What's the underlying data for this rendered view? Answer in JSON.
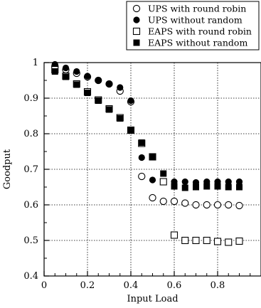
{
  "chart_data": {
    "type": "scatter",
    "xlabel": "Input Load",
    "ylabel": "Goodput",
    "xlim": [
      0,
      1
    ],
    "ylim": [
      0.4,
      1.0
    ],
    "xticks": [
      0,
      0.2,
      0.4,
      0.6,
      0.8
    ],
    "yticks": [
      0.4,
      0.5,
      0.6,
      0.7,
      0.8,
      0.9,
      1
    ],
    "xtick_labels": [
      "0",
      "0.2",
      "0.4",
      "0.6",
      "0.8"
    ],
    "ytick_labels": [
      "0.4",
      "0.5",
      "0.6",
      "0.7",
      "0.8",
      "0.9",
      "1"
    ],
    "grid": true,
    "legend_position": "top-right",
    "series": [
      {
        "name": "UPS with round robin",
        "marker": "circle-open",
        "x": [
          0.05,
          0.1,
          0.15,
          0.2,
          0.25,
          0.3,
          0.35,
          0.4,
          0.45,
          0.5,
          0.55,
          0.6,
          0.65,
          0.7,
          0.75,
          0.8,
          0.85,
          0.9
        ],
        "y": [
          0.99,
          0.98,
          0.97,
          0.96,
          0.95,
          0.94,
          0.92,
          0.89,
          0.68,
          0.62,
          0.61,
          0.61,
          0.605,
          0.6,
          0.6,
          0.6,
          0.6,
          0.598
        ]
      },
      {
        "name": "UPS without random",
        "marker": "circle-filled",
        "x": [
          0.05,
          0.1,
          0.15,
          0.2,
          0.25,
          0.3,
          0.35,
          0.4,
          0.45,
          0.5,
          0.55,
          0.6,
          0.65,
          0.7,
          0.75,
          0.8,
          0.85,
          0.9
        ],
        "y": [
          0.995,
          0.985,
          0.975,
          0.962,
          0.95,
          0.94,
          0.93,
          0.893,
          0.733,
          0.67,
          0.665,
          0.665,
          0.665,
          0.663,
          0.665,
          0.665,
          0.665,
          0.665
        ]
      },
      {
        "name": "EAPS with round robin",
        "marker": "square-open",
        "x": [
          0.05,
          0.1,
          0.15,
          0.2,
          0.25,
          0.3,
          0.35,
          0.4,
          0.45,
          0.5,
          0.55,
          0.6,
          0.65,
          0.7,
          0.75,
          0.8,
          0.85,
          0.9
        ],
        "y": [
          0.98,
          0.962,
          0.94,
          0.918,
          0.895,
          0.87,
          0.845,
          0.81,
          0.773,
          0.735,
          0.665,
          0.515,
          0.5,
          0.5,
          0.5,
          0.497,
          0.495,
          0.498
        ]
      },
      {
        "name": "EAPS without random",
        "marker": "square-filled",
        "x": [
          0.05,
          0.1,
          0.15,
          0.2,
          0.25,
          0.3,
          0.35,
          0.4,
          0.45,
          0.5,
          0.55,
          0.6,
          0.65,
          0.7,
          0.75,
          0.8,
          0.85,
          0.9
        ],
        "y": [
          0.975,
          0.96,
          0.938,
          0.915,
          0.893,
          0.868,
          0.843,
          0.81,
          0.775,
          0.735,
          0.688,
          0.652,
          0.648,
          0.65,
          0.652,
          0.652,
          0.65,
          0.65
        ]
      }
    ]
  }
}
